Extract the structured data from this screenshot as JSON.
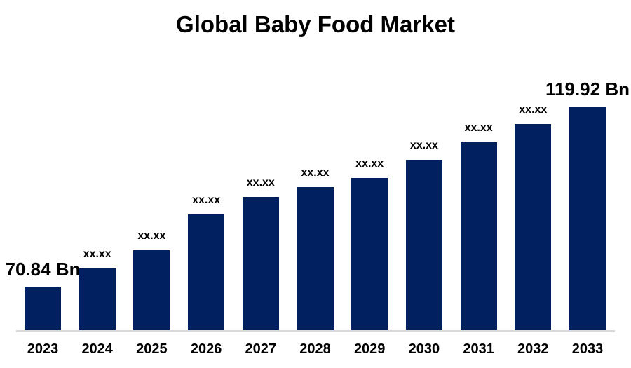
{
  "chart_data": {
    "type": "bar",
    "title": "Global Baby Food Market",
    "unit": "Bn",
    "categories": [
      "2023",
      "2024",
      "2025",
      "2026",
      "2027",
      "2028",
      "2029",
      "2030",
      "2031",
      "2032",
      "2033"
    ],
    "bar_labels": [
      "70.84 Bn",
      "xx.xx",
      "xx.xx",
      "xx.xx",
      "xx.xx",
      "xx.xx",
      "xx.xx",
      "xx.xx",
      "xx.xx",
      "xx.xx",
      "119.92 Bn"
    ],
    "known_values": {
      "2023": 70.84,
      "2033": 119.92
    },
    "masked_value_placeholder": "xx.xx",
    "values_estimated_from_bar_heights": [
      70.84,
      75.8,
      80.8,
      90.5,
      95.3,
      98.0,
      100.4,
      105.4,
      110.2,
      115.1,
      119.92
    ],
    "axis_baseline_value_estimate": 59,
    "ylim_estimate": [
      59,
      122
    ],
    "xlabel": "",
    "ylabel": "",
    "grid": false,
    "legend": false,
    "colors": {
      "bar": "#002060",
      "axis_line": "#d9d9d9",
      "text": "#000000",
      "background": "#ffffff"
    }
  }
}
